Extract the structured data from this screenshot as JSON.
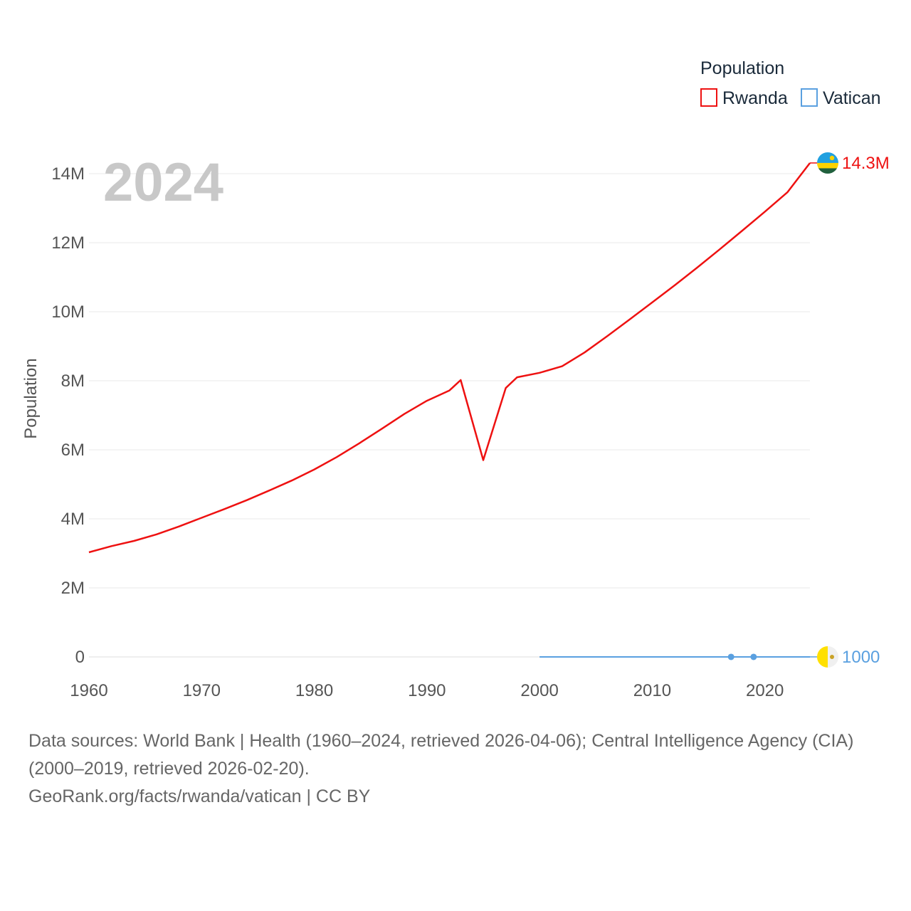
{
  "chart_data": {
    "type": "line",
    "title": "Population",
    "year_label": "2024",
    "ylabel": "Population",
    "xlabel": "",
    "xlim": [
      1960,
      2024
    ],
    "ylim": [
      0,
      14000000
    ],
    "x_ticks": [
      1960,
      1970,
      1980,
      1990,
      2000,
      2010,
      2020
    ],
    "x_tick_labels": [
      "1960",
      "1970",
      "1980",
      "1990",
      "2000",
      "2010",
      "2020"
    ],
    "y_ticks": [
      0,
      2000000,
      4000000,
      6000000,
      8000000,
      10000000,
      12000000,
      14000000
    ],
    "y_tick_labels": [
      "0",
      "2M",
      "4M",
      "6M",
      "8M",
      "10M",
      "12M",
      "14M"
    ],
    "grid": true,
    "legend": {
      "title": "Population",
      "position": "top-right"
    },
    "series": [
      {
        "name": "Rwanda",
        "color": "#ee1111",
        "end_label": "14.3M",
        "flag_colors": [
          "#20a0e0",
          "#fad201",
          "#20603d"
        ],
        "x": [
          1960,
          1962,
          1964,
          1966,
          1968,
          1970,
          1972,
          1974,
          1976,
          1978,
          1980,
          1982,
          1984,
          1986,
          1988,
          1990,
          1992,
          1993,
          1995,
          1997,
          1998,
          2000,
          2002,
          2004,
          2006,
          2008,
          2010,
          2012,
          2014,
          2016,
          2018,
          2020,
          2022,
          2024
        ],
        "values": [
          3030000,
          3210000,
          3360000,
          3550000,
          3780000,
          4030000,
          4280000,
          4540000,
          4820000,
          5110000,
          5430000,
          5790000,
          6190000,
          6610000,
          7040000,
          7420000,
          7720000,
          8020000,
          5700000,
          7790000,
          8100000,
          8230000,
          8420000,
          8820000,
          9290000,
          9780000,
          10270000,
          10770000,
          11280000,
          11810000,
          12350000,
          12900000,
          13460000,
          14310000
        ]
      },
      {
        "name": "Vatican",
        "color": "#5aa0e0",
        "end_label": "1000",
        "flag_colors": [
          "#ffe000",
          "#f0f0f0"
        ],
        "x": [
          2000,
          2005,
          2010,
          2015,
          2017,
          2019,
          2024
        ],
        "values": [
          870,
          900,
          830,
          840,
          1000,
          1000,
          1000
        ],
        "markers_x": [
          2017,
          2019
        ]
      }
    ]
  },
  "source": {
    "line1": "Data sources: World Bank | Health (1960–2024, retrieved 2026-04-06); Central Intelligence Agency (CIA) (2000–2019, retrieved 2026-02-20).",
    "line2": "GeoRank.org/facts/rwanda/vatican | CC BY"
  }
}
